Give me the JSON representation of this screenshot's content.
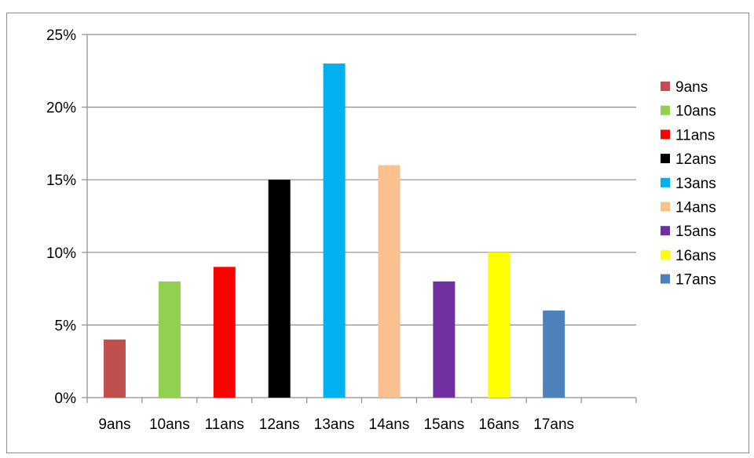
{
  "chart_data": {
    "type": "bar",
    "categories": [
      "9ans",
      "10ans",
      "11ans",
      "12ans",
      "13ans",
      "14ans",
      "15ans",
      "16ans",
      "17ans"
    ],
    "values": [
      4,
      8,
      9,
      15,
      23,
      16,
      8,
      10,
      6
    ],
    "value_unit": "%",
    "colors": [
      "#c0504d",
      "#92d050",
      "#ff0000",
      "#000000",
      "#00b0f0",
      "#fac090",
      "#7030a0",
      "#ffff00",
      "#4f81bd"
    ],
    "y_ticks": [
      "0%",
      "5%",
      "10%",
      "15%",
      "20%",
      "25%"
    ],
    "ylim": [
      0,
      25
    ],
    "title": "",
    "xlabel": "",
    "ylabel": "",
    "grid": true,
    "legend_position": "right",
    "legend": [
      "9ans",
      "10ans",
      "11ans",
      "12ans",
      "13ans",
      "14ans",
      "15ans",
      "16ans",
      "17ans"
    ]
  }
}
